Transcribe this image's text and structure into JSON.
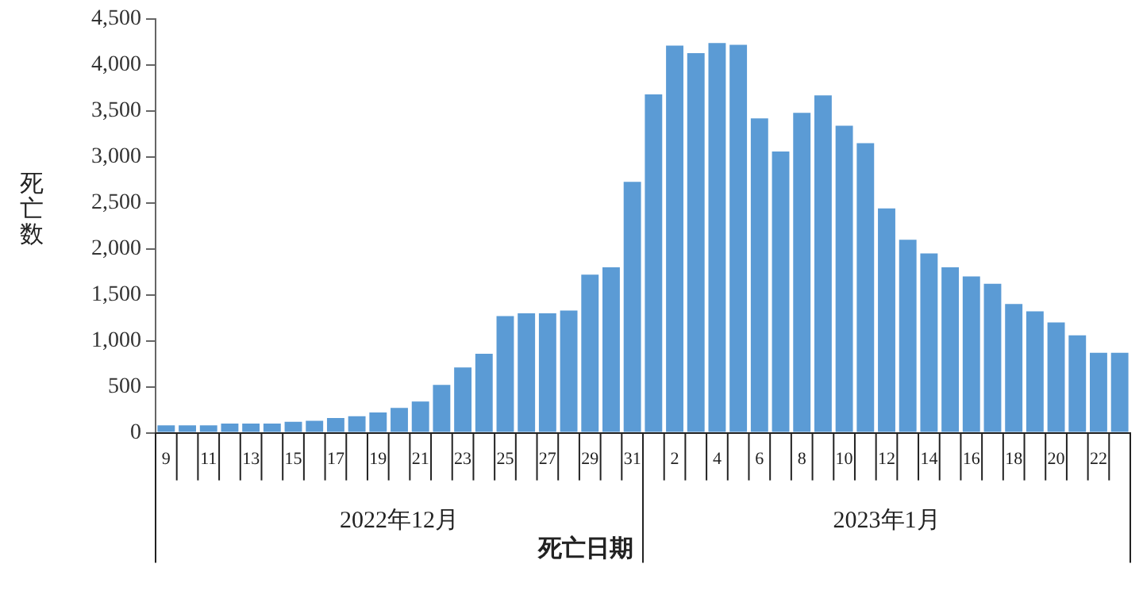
{
  "chart_data": {
    "type": "bar",
    "xlabel": "死亡日期",
    "ylabel": "死亡数",
    "categories": [
      "9",
      null,
      "11",
      null,
      "13",
      null,
      "15",
      null,
      "17",
      null,
      "19",
      null,
      "21",
      null,
      "23",
      null,
      "25",
      null,
      "27",
      null,
      "29",
      null,
      "31",
      null,
      "2",
      null,
      "4",
      null,
      "6",
      null,
      "8",
      null,
      "10",
      null,
      "12",
      null,
      "14",
      null,
      "16",
      null,
      "18",
      null,
      "20",
      null,
      "22",
      null
    ],
    "values": [
      80,
      80,
      80,
      100,
      100,
      100,
      120,
      130,
      160,
      180,
      220,
      270,
      340,
      520,
      710,
      860,
      1270,
      1300,
      1300,
      1330,
      1720,
      1800,
      2730,
      3680,
      4210,
      4130,
      4240,
      4220,
      3420,
      3060,
      3480,
      3670,
      3340,
      3150,
      2440,
      2100,
      1950,
      1800,
      1700,
      1620,
      1400,
      1320,
      1200,
      1060,
      870,
      870
    ],
    "color": "#5b9bd5",
    "ylim": [
      0,
      4500
    ],
    "yticks": [
      0,
      500,
      {
        "value": 1000,
        "label": "1,000"
      },
      {
        "value": 1500,
        "label": "1,500"
      },
      {
        "value": 2000,
        "label": "2,000"
      },
      {
        "value": 2500,
        "label": "2,500"
      },
      {
        "value": 3000,
        "label": "3,000"
      },
      {
        "value": 3500,
        "label": "3,500"
      },
      {
        "value": 4000,
        "label": "4,000"
      },
      {
        "value": 4500,
        "label": "4,500"
      }
    ],
    "grid": false,
    "annotations": [
      "2022年12月",
      "2023年1月"
    ]
  }
}
